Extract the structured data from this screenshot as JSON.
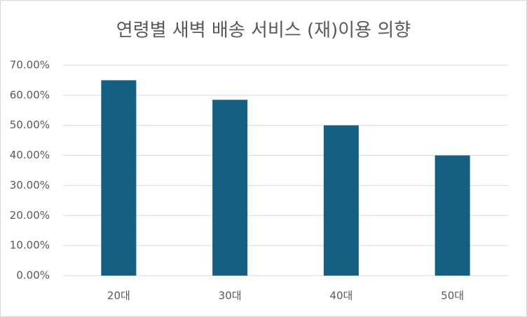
{
  "chart_data": {
    "type": "bar",
    "title": "연령별 새벽 배송 서비스 (재)이용 의향",
    "categories": [
      "20대",
      "30대",
      "40대",
      "50대"
    ],
    "values": [
      65,
      58.5,
      50,
      40
    ],
    "color": "#156082",
    "ylim": [
      0,
      70
    ],
    "yticks": [
      {
        "value": 0,
        "label": "0.00%"
      },
      {
        "value": 10,
        "label": "10.00%"
      },
      {
        "value": 20,
        "label": "20.00%"
      },
      {
        "value": 30,
        "label": "30.00%"
      },
      {
        "value": 40,
        "label": "40.00%"
      },
      {
        "value": 50,
        "label": "50.00%"
      },
      {
        "value": 60,
        "label": "60.00%"
      },
      {
        "value": 70,
        "label": "70.00%"
      }
    ],
    "grid": true
  }
}
